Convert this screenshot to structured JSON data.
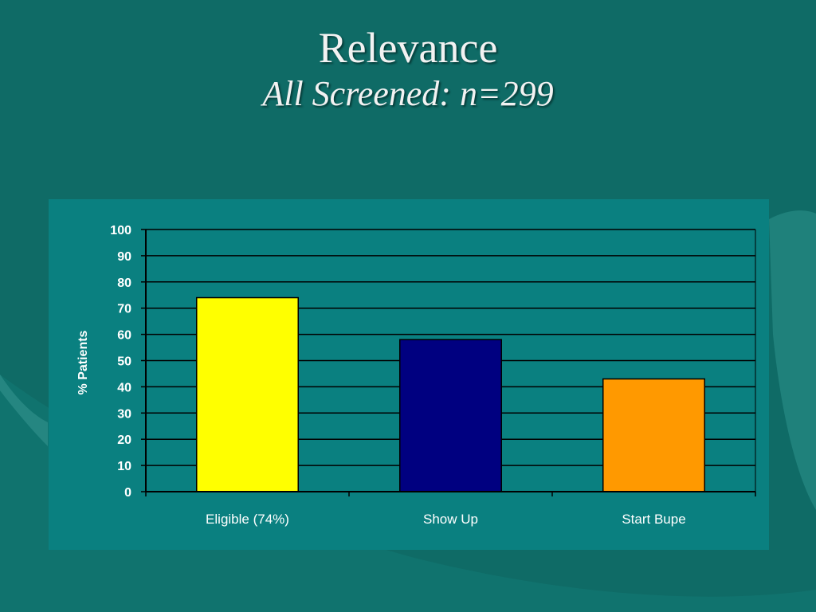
{
  "slide": {
    "title": "Relevance",
    "subtitle": "All Screened: n=299"
  },
  "colors": {
    "background": "#0f6b66",
    "chart_panel": "#0a8080",
    "gridline": "#000000",
    "text": "#ffffff"
  },
  "chart_data": {
    "type": "bar",
    "title": "",
    "xlabel": "",
    "ylabel": "% Patients",
    "categories": [
      "Eligible (74%)",
      "Show Up",
      "Start Bupe"
    ],
    "values": [
      74,
      58,
      43
    ],
    "bar_colors": [
      "#ffff00",
      "#000080",
      "#ff9900"
    ],
    "ylim": [
      0,
      100
    ],
    "yticks": [
      0,
      10,
      20,
      30,
      40,
      50,
      60,
      70,
      80,
      90,
      100
    ],
    "grid": true,
    "legend": "none"
  }
}
